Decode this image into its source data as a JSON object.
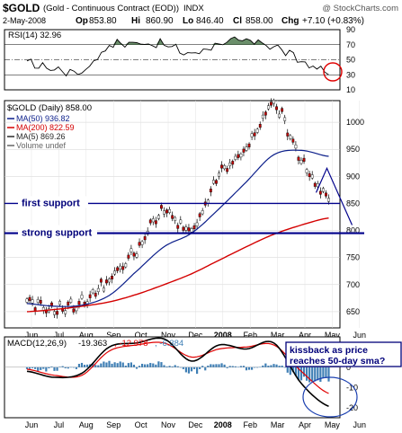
{
  "header": {
    "symbol": "$GOLD",
    "description": "(Gold - Continuous Contract (EOD))",
    "exchange": "INDX",
    "watermark": "@ StockCharts.com",
    "date": "2-May-2008",
    "open_label": "Op",
    "open": "853.80",
    "high_label": "Hi",
    "high": "860.90",
    "low_label": "Lo",
    "low": "846.40",
    "close_label": "Cl",
    "close": "858.00",
    "change_label": "Chg",
    "change": "+7.10 (+0.83%)"
  },
  "colors": {
    "price": "#000000",
    "ma50": "#0b1e8a",
    "ma200": "#d40000",
    "ma5": "#2a2a2a",
    "support_line": "#00008b",
    "annotation": "#00007a",
    "circle": "#e00000",
    "macd_line": "#000000",
    "signal_line": "#e00000",
    "histogram": "#3f7fb5",
    "rsi_fill": "#507a50"
  },
  "chart_data": [
    {
      "type": "line",
      "panel": "rsi",
      "label": "RSI(14) 32.96",
      "ylim": [
        10,
        90
      ],
      "yticks": [
        10,
        30,
        50,
        70,
        90
      ],
      "guide_lines": [
        30,
        50,
        70
      ],
      "x": [
        "Jun 07",
        "Jul 07",
        "Aug 07",
        "Sep 07",
        "Oct 07",
        "Nov 07",
        "Dec 07",
        "Jan 08",
        "Feb 08",
        "Mar 08",
        "Apr 08",
        "May 08"
      ],
      "series": [
        {
          "name": "RSI(14)",
          "values": [
            45,
            38,
            35,
            68,
            72,
            70,
            58,
            72,
            74,
            68,
            48,
            33
          ]
        }
      ]
    },
    {
      "type": "line",
      "panel": "price",
      "title": "$GOLD (Daily) 858.00",
      "ylim": [
        620,
        1040
      ],
      "yticks": [
        650,
        700,
        750,
        800,
        850,
        900,
        950,
        1000
      ],
      "xticks": [
        "Jun",
        "Jul",
        "Aug",
        "Sep",
        "Oct",
        "Nov",
        "Dec",
        "2008",
        "Feb",
        "Mar",
        "Apr",
        "May",
        "Jun"
      ],
      "legend_placement": "top-left",
      "legend": [
        "MA(50) 936.82",
        "MA(200) 822.59",
        "MA(5) 869.26",
        "Volume undef"
      ],
      "x": [
        "Jun 07",
        "Jul 07",
        "Aug 07",
        "Sep 07",
        "Oct 07",
        "Nov 07",
        "Dec 07",
        "Jan 08",
        "Feb 08",
        "Mar 08",
        "Apr 08",
        "May 08"
      ],
      "series": [
        {
          "name": "MA(50) 936.82",
          "values": [
            665,
            660,
            662,
            680,
            725,
            770,
            795,
            840,
            890,
            940,
            948,
            937
          ]
        },
        {
          "name": "MA(200) 822.59",
          "values": [
            650,
            654,
            660,
            668,
            682,
            700,
            720,
            745,
            770,
            793,
            810,
            823
          ]
        },
        {
          "name": "MA(5) 869.26",
          "values": [
            660,
            662,
            668,
            715,
            760,
            812,
            808,
            875,
            930,
            1000,
            910,
            869
          ]
        }
      ],
      "price_series": {
        "name": "$GOLD",
        "values": [
          665,
          655,
          668,
          710,
          765,
          835,
          800,
          900,
          950,
          1030,
          930,
          858
        ]
      },
      "support_lines": [
        {
          "label": "first support",
          "y": 850
        },
        {
          "label": "strong support",
          "y": 795
        }
      ],
      "projection": {
        "x": [
          "May 08",
          "Jun 08"
        ],
        "y": [
          915,
          810
        ]
      }
    },
    {
      "type": "line",
      "panel": "macd",
      "label": "MACD(12,26,9)",
      "macd_value": "-19.363",
      "signal_value": "-12.978",
      "histogram_value": "-6.384",
      "ylim": [
        -25,
        15
      ],
      "yticks": [
        -20,
        -10,
        0,
        10
      ],
      "xticks": [
        "Jun",
        "Jul",
        "Aug",
        "Sep",
        "Oct",
        "Nov",
        "Dec",
        "2008",
        "Feb",
        "Mar",
        "Apr",
        "May",
        "Jun"
      ],
      "x": [
        "Jun 07",
        "Jul 07",
        "Aug 07",
        "Sep 07",
        "Oct 07",
        "Nov 07",
        "Dec 07",
        "Jan 08",
        "Feb 08",
        "Mar 08",
        "Apr 08",
        "May 08"
      ],
      "series": [
        {
          "name": "MACD",
          "values": [
            -2,
            -5,
            -3,
            10,
            12,
            14,
            3,
            11,
            9,
            12,
            -8,
            -19.363
          ]
        },
        {
          "name": "Signal",
          "values": [
            -1,
            -4,
            -4,
            8,
            11,
            12,
            5,
            9,
            10,
            11,
            -2,
            -12.978
          ]
        }
      ],
      "histogram": [
        -1,
        -1,
        1,
        2,
        1,
        2,
        -2,
        2,
        -1,
        1,
        -6,
        -6.384
      ],
      "annotation": [
        "kissback as price",
        "reaches 50-day sma?"
      ]
    }
  ]
}
